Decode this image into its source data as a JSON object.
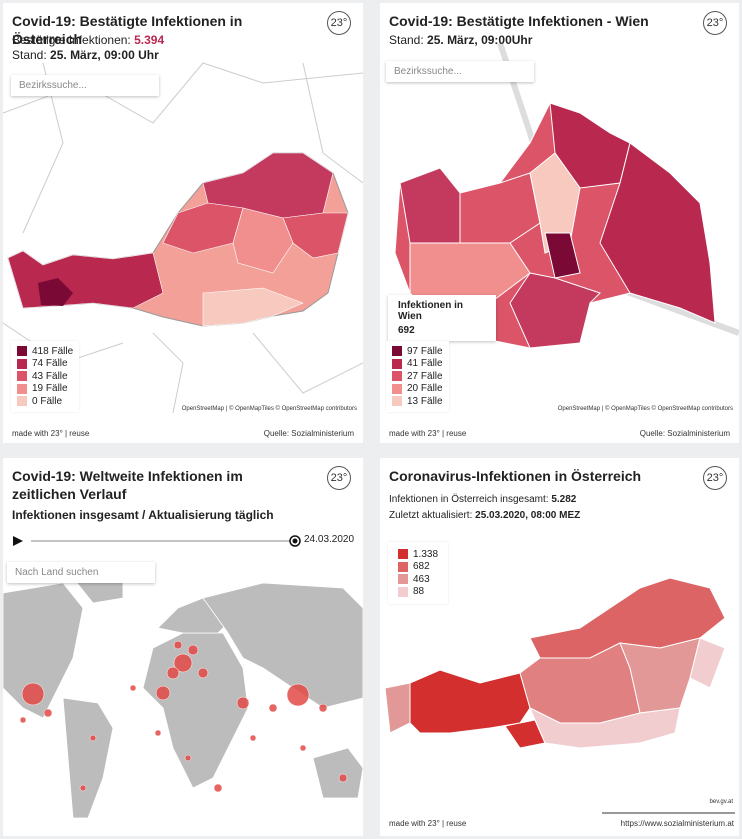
{
  "panels": [
    {
      "title": "Covid-19: Bestätigte Infektionen in Österreich",
      "logo": "23°",
      "lines": [
        {
          "label": "Bestätigte Infektionen:",
          "value": "5.394"
        },
        {
          "label": "Stand:",
          "value": "25. März, 09:00 Uhr"
        }
      ],
      "search": "Bezirkssuche...",
      "legend": [
        {
          "label": "418 Fälle",
          "color": "#7a0a35"
        },
        {
          "label": "74 Fälle",
          "color": "#b8284f"
        },
        {
          "label": "43 Fälle",
          "color": "#dc5468"
        },
        {
          "label": "19 Fälle",
          "color": "#f08f8e"
        },
        {
          "label": "0 Fälle",
          "color": "#f8c9bf"
        }
      ],
      "attribution": "OpenStreetMap | © OpenMapTiles © OpenStreetMap contributors",
      "footer_left": "made with 23° | reuse",
      "footer_right": "Quelle: Sozialministerium"
    },
    {
      "title": "Covid-19: Bestätigte Infektionen - Wien",
      "logo": "23°",
      "lines": [
        {
          "label": "Stand:",
          "value": "25. März, 09:00Uhr"
        }
      ],
      "search": "Bezirkssuche...",
      "tooltip": {
        "title": "Infektionen in Wien",
        "value": "692"
      },
      "legend": [
        {
          "label": "97 Fälle",
          "color": "#7a0a35"
        },
        {
          "label": "41 Fälle",
          "color": "#b8284f"
        },
        {
          "label": "27 Fälle",
          "color": "#dc5468"
        },
        {
          "label": "20 Fälle",
          "color": "#f08f8e"
        },
        {
          "label": "13 Fälle",
          "color": "#f8c9bf"
        }
      ],
      "attribution": "OpenStreetMap | © OpenMapTiles © OpenStreetMap contributors",
      "footer_left": "made with 23° | reuse",
      "footer_right": "Quelle: Sozialministerium"
    },
    {
      "title": "Covid-19: Weltweite Infektionen im zeitlichen Verlauf",
      "logo": "23°",
      "subtitle": "Infektionen insgesamt / Aktualisierung täglich",
      "date": "24.03.2020",
      "search": "Nach Land suchen"
    },
    {
      "title": "Coronavirus-Infektionen in Österreich",
      "logo": "23°",
      "lines": [
        {
          "label": "Infektionen in Österreich insgesamt:",
          "value": "5.282"
        },
        {
          "label": "Zuletzt aktualisiert:",
          "value": "25.03.2020, 08:00 MEZ"
        }
      ],
      "legend": [
        {
          "label": "1.338",
          "color": "#d32f2f"
        },
        {
          "label": "682",
          "color": "#dc6464"
        },
        {
          "label": "463",
          "color": "#e39898"
        },
        {
          "label": "88",
          "color": "#f2cdd0"
        }
      ],
      "attribution": "bev.gv.at",
      "footer_left": "made with 23° | reuse",
      "footer_right": "https://www.sozialministerium.at"
    }
  ]
}
